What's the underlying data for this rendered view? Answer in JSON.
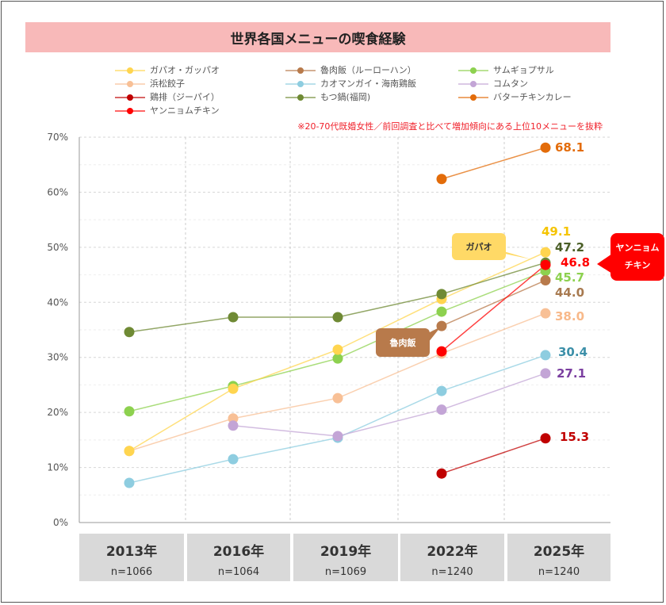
{
  "title": "世界各国メニューの喫食経験",
  "note": "※20-70代既婚女性／前回調査と比べて増加傾向にある上位10メニューを抜粋",
  "callouts": {
    "gapao": "ガパオ",
    "lurouhan": "魯肉飯",
    "yangnyeom_1": "ヤンニョム",
    "yangnyeom_2": "チキン"
  },
  "chart_data": {
    "type": "line",
    "title": "世界各国メニューの喫食経験",
    "categories": [
      "2013年",
      "2016年",
      "2019年",
      "2022年",
      "2025年"
    ],
    "sample_sizes": [
      "n=1066",
      "n=1064",
      "n=1069",
      "n=1240",
      "n=1240"
    ],
    "ylim": [
      0,
      70
    ],
    "yticks": [
      "0%",
      "10%",
      "20%",
      "30%",
      "40%",
      "50%",
      "60%",
      "70%"
    ],
    "grid": true,
    "legend_position": "top",
    "series": [
      {
        "name": "ガパオ・ガッパオ",
        "color": "#ffd54f",
        "label_color": "#f5c400",
        "values": [
          13.0,
          24.3,
          31.4,
          40.6,
          49.1
        ]
      },
      {
        "name": "魯肉飯（ルーローハン）",
        "color": "#b87a4b",
        "label_color": "#a87a50",
        "values": [
          null,
          null,
          null,
          35.7,
          44.0
        ]
      },
      {
        "name": "サムギョプサル",
        "color": "#8dd14f",
        "label_color": "#8dd14f",
        "values": [
          20.2,
          24.8,
          29.8,
          38.3,
          45.7
        ]
      },
      {
        "name": "浜松餃子",
        "color": "#f8c096",
        "label_color": "#f8b98a",
        "values": [
          13.0,
          18.9,
          22.6,
          30.7,
          38.0
        ]
      },
      {
        "name": "カオマンガイ・海南鶏飯",
        "color": "#8ecde0",
        "label_color": "#3c8fa8",
        "values": [
          7.2,
          11.5,
          15.4,
          23.9,
          30.4
        ]
      },
      {
        "name": "コムタン",
        "color": "#c3a5d6",
        "label_color": "#7b3fa0",
        "values": [
          null,
          17.6,
          15.7,
          20.5,
          27.1
        ]
      },
      {
        "name": "鶏排（ジーパイ）",
        "color": "#c00000",
        "label_color": "#c00000",
        "values": [
          null,
          null,
          null,
          8.9,
          15.3
        ]
      },
      {
        "name": "もつ鍋(福岡)",
        "color": "#6f8a34",
        "label_color": "#4a5e26",
        "values": [
          34.6,
          37.3,
          37.3,
          41.5,
          47.2
        ]
      },
      {
        "name": "バターチキンカレー",
        "color": "#e36c0a",
        "label_color": "#e36c0a",
        "values": [
          null,
          null,
          null,
          62.4,
          68.1
        ]
      },
      {
        "name": "ヤンニョムチキン",
        "color": "#ff0000",
        "label_color": "#ff0000",
        "values": [
          null,
          null,
          null,
          31.1,
          46.8
        ]
      }
    ]
  }
}
